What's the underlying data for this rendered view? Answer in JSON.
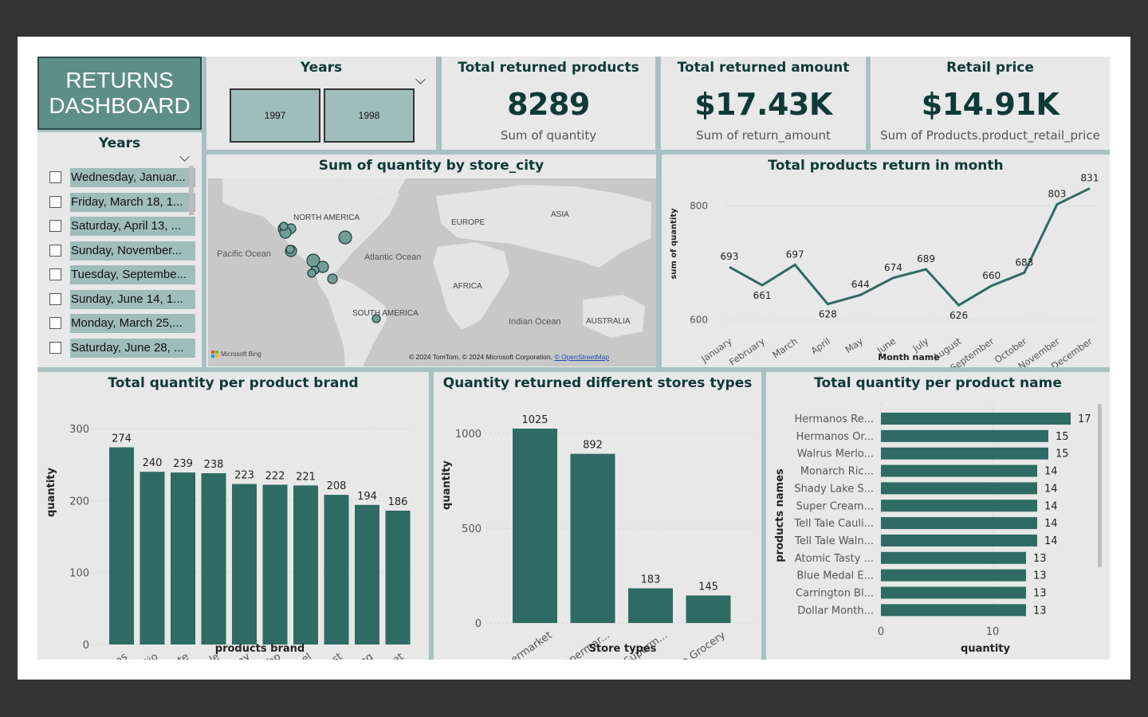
{
  "dashboard_title": "RETURNS DASHBOARD",
  "colors": {
    "accent": "#2e6b64",
    "title_bg": "#5e8f87",
    "slicer_selected": "#9fbdb9",
    "panel_bg": "#e8e8e8",
    "divider": "#a7c2c0"
  },
  "years_slicer": {
    "title": "Years",
    "options": [
      "1997",
      "1998"
    ]
  },
  "date_slicer": {
    "title": "Years",
    "items": [
      "Wednesday, Januar...",
      "Friday, March 18, 1...",
      "Saturday, April 13, ...",
      "Sunday, November...",
      "Tuesday, Septembe...",
      "Sunday, June 14, 1...",
      "Monday, March 25,...",
      "Saturday, June 28, ..."
    ]
  },
  "kpis": [
    {
      "title": "Total returned products",
      "value": "8289",
      "subtitle": "Sum of quantity"
    },
    {
      "title": "Total returned amount",
      "value": "$17.43K",
      "subtitle": "Sum of return_amount"
    },
    {
      "title": "Retail price",
      "value": "$14.91K",
      "subtitle": "Sum of Products.product_retail_price"
    }
  ],
  "map": {
    "title": "Sum of quantity by store_city",
    "labels": {
      "north_america": "NORTH AMERICA",
      "europe": "EUROPE",
      "asia": "ASIA",
      "pacific": "Pacific Ocean",
      "atlantic": "Atlantic Ocean",
      "africa": "AFRICA",
      "south_america": "SOUTH AMERICA",
      "indian": "Indian Ocean",
      "australia": "AUSTRALIA"
    },
    "bing_label": "Microsoft Bing",
    "attribution": "© 2024 TomTom, © 2024 Microsoft Corporation,",
    "attribution_link": "© OpenStreetMap"
  },
  "chart_data": [
    {
      "type": "line",
      "title": "Total products return in month",
      "xlabel": "Month name",
      "ylabel": "sum of quantity",
      "categories": [
        "January",
        "February",
        "March",
        "April",
        "May",
        "June",
        "July",
        "August",
        "September",
        "October",
        "November",
        "December"
      ],
      "values": [
        693,
        661,
        697,
        628,
        644,
        674,
        689,
        626,
        660,
        683,
        803,
        831
      ],
      "ylim": [
        580,
        840
      ],
      "yticks": [
        600,
        800
      ]
    },
    {
      "type": "bar",
      "title": "Total quantity per product brand",
      "xlabel": "products brand",
      "ylabel": "quantity",
      "categories": [
        "Hermanos",
        "Horatio",
        "Tri-State",
        "Tell Tale",
        "Ebony",
        "High Top",
        "Nationeel",
        "Fast",
        "Red Wing",
        "Sunset"
      ],
      "values": [
        274,
        240,
        239,
        238,
        223,
        222,
        221,
        208,
        194,
        186
      ],
      "ylim": [
        0,
        300
      ],
      "yticks": [
        0,
        100,
        200,
        300
      ]
    },
    {
      "type": "bar",
      "title": "Quantity returned different stores types",
      "xlabel": "Store types",
      "ylabel": "quantity",
      "categories": [
        "Supermarket",
        "Deluxe Supermar...",
        "Gourmet Superm...",
        "Mid-Size Grocery"
      ],
      "values": [
        1025,
        892,
        183,
        145
      ],
      "ylim": [
        0,
        1025
      ],
      "yticks": [
        0,
        500,
        1000
      ]
    },
    {
      "type": "bar",
      "orientation": "horizontal",
      "title": "Total quantity per product name",
      "xlabel": "quantity",
      "ylabel": "products names",
      "categories": [
        "Hermanos Re...",
        "Hermanos Or...",
        "Walrus Merlo...",
        "Monarch Ric...",
        "Shady Lake S...",
        "Super Cream...",
        "Tell Tale Cauli...",
        "Tell Tale Waln...",
        "Atomic Tasty ...",
        "Blue Medal E...",
        "Carrington Bl...",
        "Dollar Month..."
      ],
      "values": [
        17,
        15,
        15,
        14,
        14,
        14,
        14,
        14,
        13,
        13,
        13,
        13
      ],
      "xlim": [
        0,
        17
      ],
      "xticks": [
        0,
        10
      ]
    }
  ]
}
